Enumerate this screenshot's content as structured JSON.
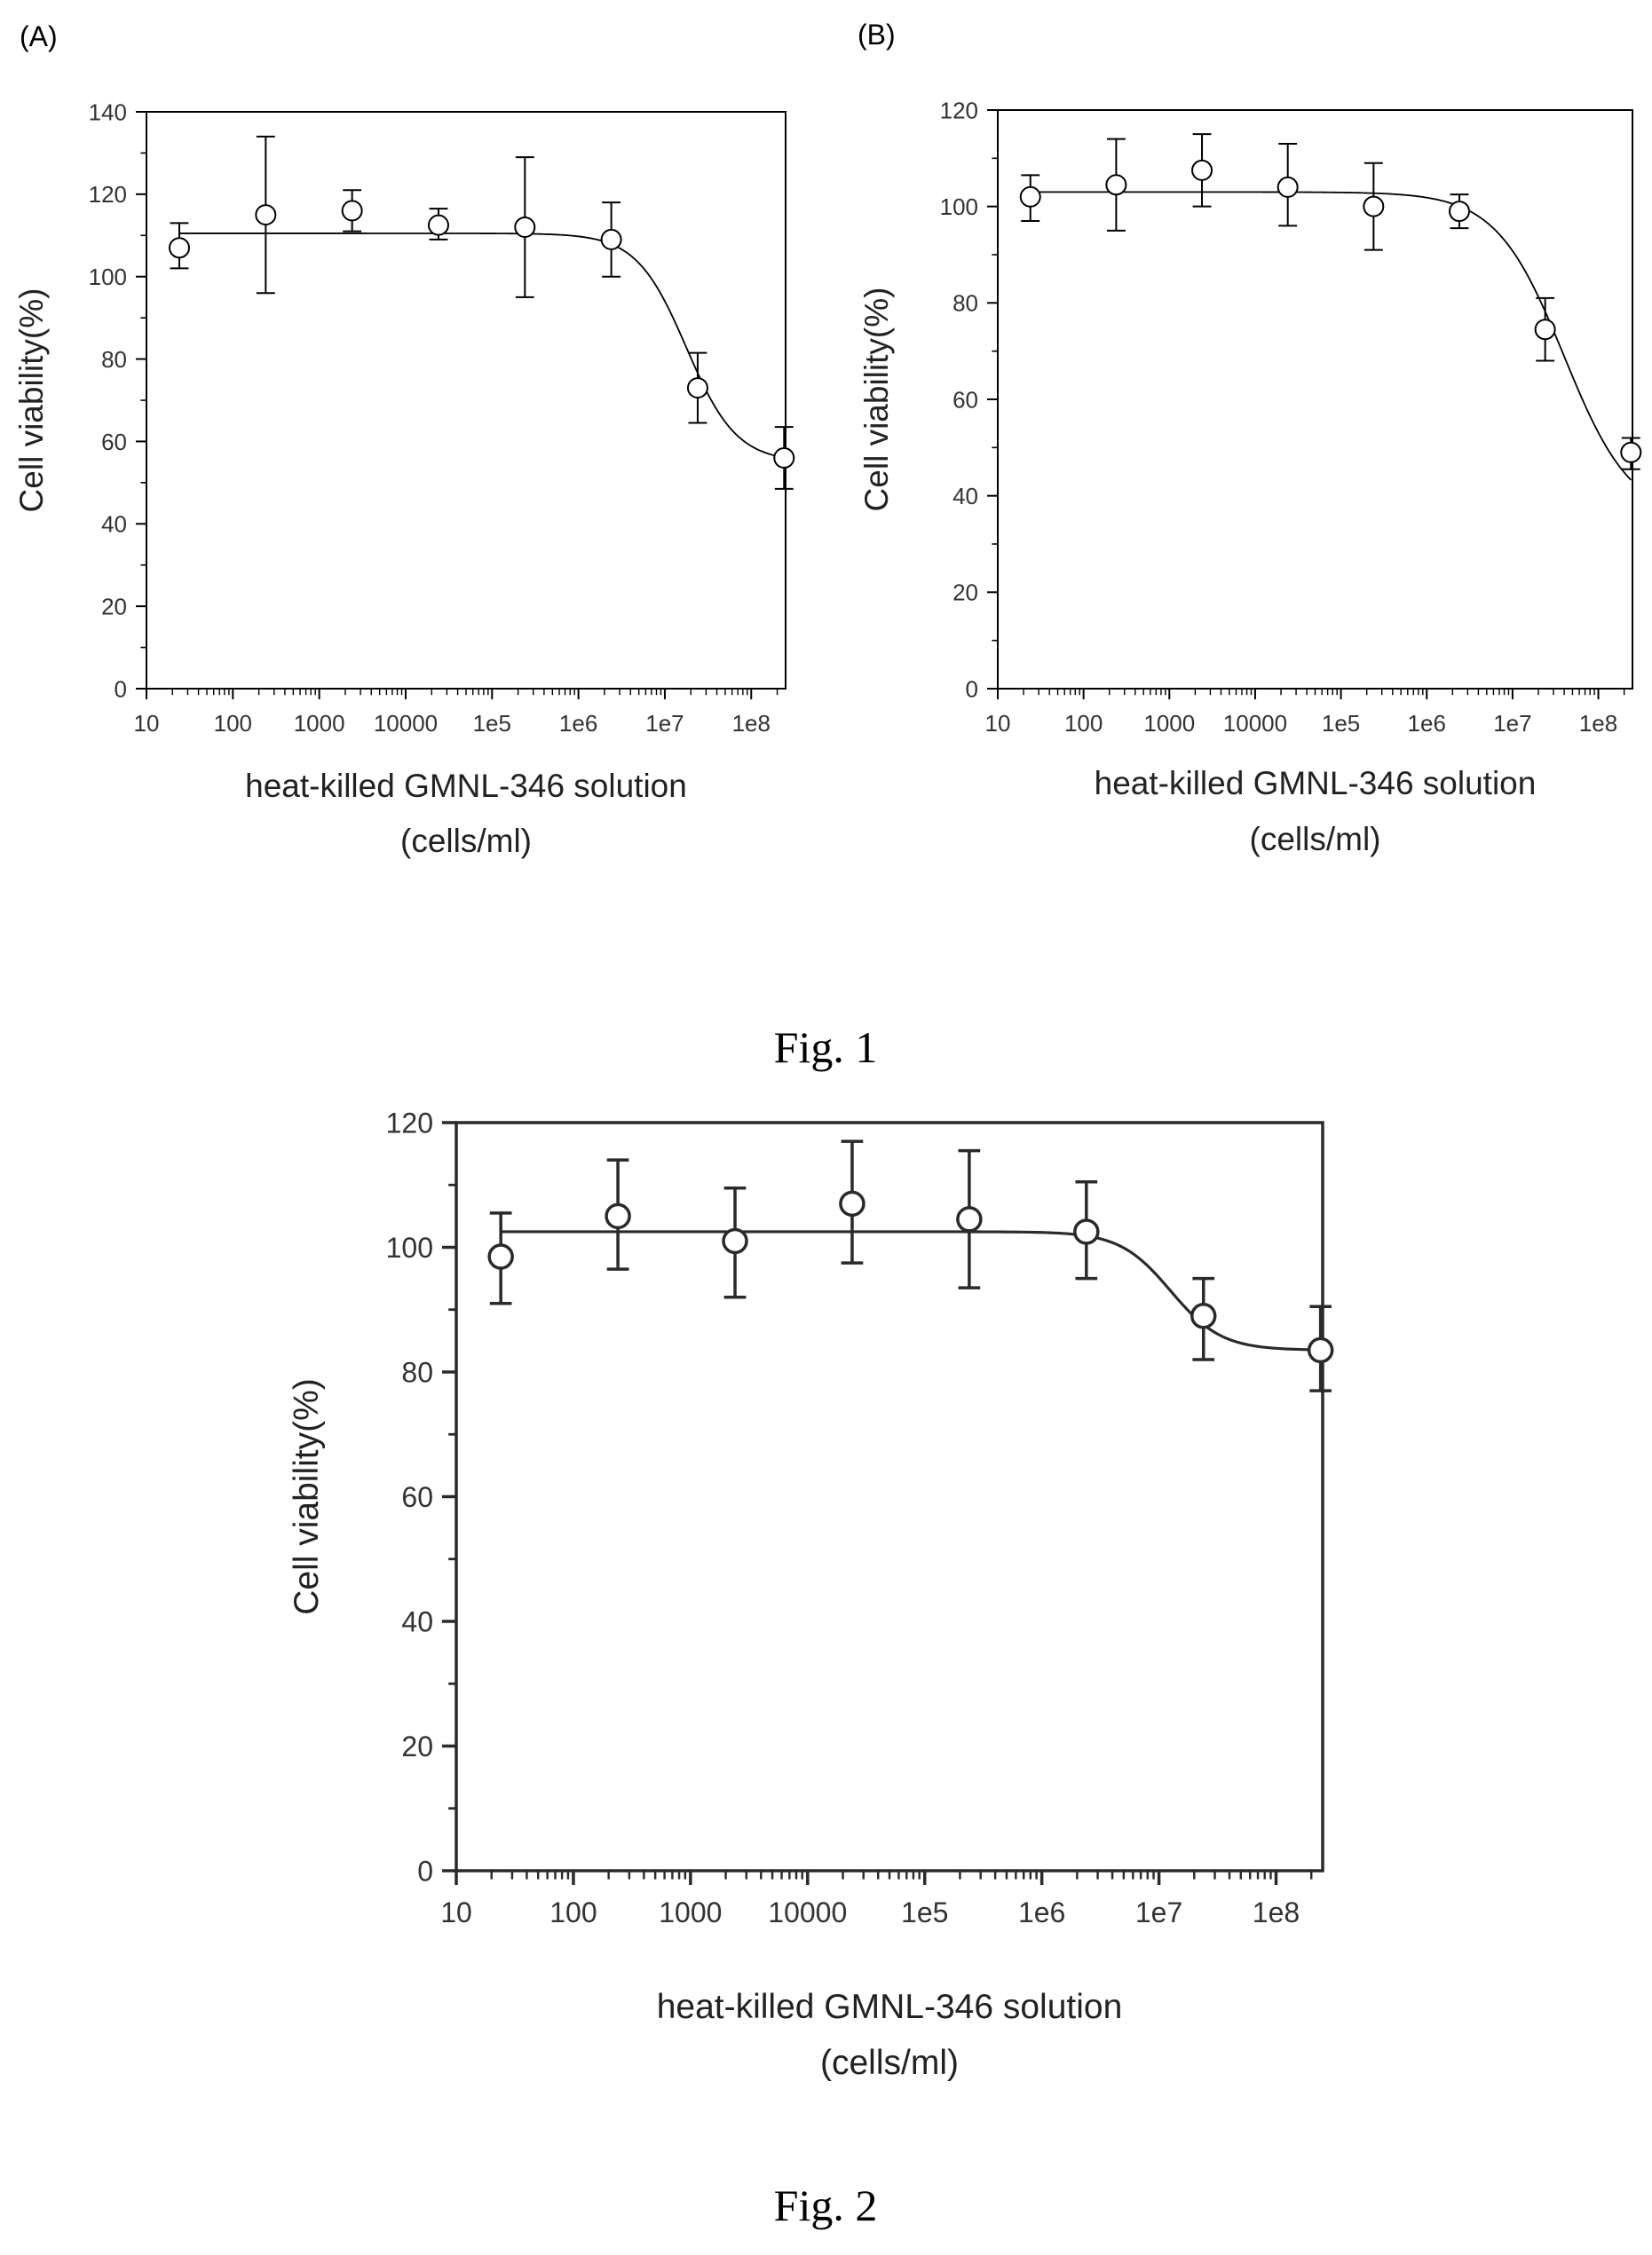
{
  "figures": [
    {
      "caption": "Fig. 1"
    },
    {
      "caption": "Fig. 2"
    }
  ],
  "chart_data": [
    {
      "panel_label": "(A)",
      "type": "scatter",
      "xlabel_lines": [
        "heat-killed GMNL-346 solution",
        "(cells/ml)"
      ],
      "ylabel": "Cell viability(%)",
      "x_scale": "log",
      "xlim": [
        10,
        250000000
      ],
      "ylim": [
        0,
        140
      ],
      "yticks": [
        0,
        20,
        40,
        60,
        80,
        100,
        120,
        140
      ],
      "xtick_values": [
        10,
        100,
        1000,
        10000,
        100000,
        1000000,
        10000000,
        100000000
      ],
      "xtick_labels": [
        "10",
        "100",
        "1000",
        "10000",
        "1e5",
        "1e6",
        "1e7",
        "1e8"
      ],
      "points": [
        {
          "x": 24,
          "y": 107,
          "err_low": 102,
          "err_high": 113
        },
        {
          "x": 240,
          "y": 115,
          "err_low": 96,
          "err_high": 134
        },
        {
          "x": 2400,
          "y": 116,
          "err_low": 111,
          "err_high": 121
        },
        {
          "x": 24000,
          "y": 112.5,
          "err_low": 109,
          "err_high": 116.5
        },
        {
          "x": 240000,
          "y": 112,
          "err_low": 95,
          "err_high": 129
        },
        {
          "x": 2400000,
          "y": 109,
          "err_low": 100,
          "err_high": 118
        },
        {
          "x": 24000000,
          "y": 73,
          "err_low": 64.5,
          "err_high": 81.5
        },
        {
          "x": 240000000,
          "y": 56,
          "err_low": 48.5,
          "err_high": 63.5
        }
      ],
      "fit": {
        "top": 110.5,
        "bottom": 55,
        "log_ec50": 7.25,
        "hill": 1.5
      }
    },
    {
      "panel_label": "(B)",
      "type": "scatter",
      "xlabel_lines": [
        "heat-killed GMNL-346 solution",
        "(cells/ml)"
      ],
      "ylabel": "Cell viability(%)",
      "x_scale": "log",
      "xlim": [
        10,
        250000000
      ],
      "ylim": [
        0,
        120
      ],
      "yticks": [
        0,
        20,
        40,
        60,
        80,
        100,
        120
      ],
      "xtick_values": [
        10,
        100,
        1000,
        10000,
        100000,
        1000000,
        10000000,
        100000000
      ],
      "xtick_labels": [
        "10",
        "100",
        "1000",
        "10000",
        "1e5",
        "1e6",
        "1e7",
        "1e8"
      ],
      "points": [
        {
          "x": 24,
          "y": 102,
          "err_low": 97,
          "err_high": 106.5
        },
        {
          "x": 240,
          "y": 104.5,
          "err_low": 95,
          "err_high": 114
        },
        {
          "x": 2400,
          "y": 107.5,
          "err_low": 100,
          "err_high": 115
        },
        {
          "x": 24000,
          "y": 104,
          "err_low": 96,
          "err_high": 113
        },
        {
          "x": 240000,
          "y": 100,
          "err_low": 91,
          "err_high": 109
        },
        {
          "x": 2400000,
          "y": 99,
          "err_low": 95.5,
          "err_high": 102.5
        },
        {
          "x": 24000000,
          "y": 74.5,
          "err_low": 68,
          "err_high": 81
        },
        {
          "x": 240000000,
          "y": 49,
          "err_low": 45.5,
          "err_high": 52
        }
      ],
      "fit": {
        "top": 103,
        "bottom": 35,
        "log_ec50": 7.6,
        "hill": 1.1
      }
    },
    {
      "panel_label": "",
      "type": "scatter",
      "xlabel_lines": [
        "heat-killed GMNL-346 solution",
        "(cells/ml)"
      ],
      "ylabel": "Cell viability(%)",
      "x_scale": "log",
      "xlim": [
        10,
        250000000
      ],
      "ylim": [
        0,
        120
      ],
      "yticks": [
        0,
        20,
        40,
        60,
        80,
        100,
        120
      ],
      "xtick_values": [
        10,
        100,
        1000,
        10000,
        100000,
        1000000,
        10000000,
        100000000
      ],
      "xtick_labels": [
        "10",
        "100",
        "1000",
        "10000",
        "1e5",
        "1e6",
        "1e7",
        "1e8"
      ],
      "points": [
        {
          "x": 24,
          "y": 98.5,
          "err_low": 91,
          "err_high": 105.5
        },
        {
          "x": 240,
          "y": 105,
          "err_low": 96.5,
          "err_high": 114
        },
        {
          "x": 2400,
          "y": 101,
          "err_low": 92,
          "err_high": 109.5
        },
        {
          "x": 24000,
          "y": 107,
          "err_low": 97.5,
          "err_high": 117
        },
        {
          "x": 240000,
          "y": 104.5,
          "err_low": 93.5,
          "err_high": 115.5
        },
        {
          "x": 2400000,
          "y": 102.5,
          "err_low": 95,
          "err_high": 110.5
        },
        {
          "x": 24000000,
          "y": 89,
          "err_low": 82,
          "err_high": 95
        },
        {
          "x": 240000000,
          "y": 83.5,
          "err_low": 77,
          "err_high": 90.5
        }
      ],
      "fit": {
        "top": 102.5,
        "bottom": 83.5,
        "log_ec50": 7.1,
        "hill": 2.0
      }
    }
  ]
}
